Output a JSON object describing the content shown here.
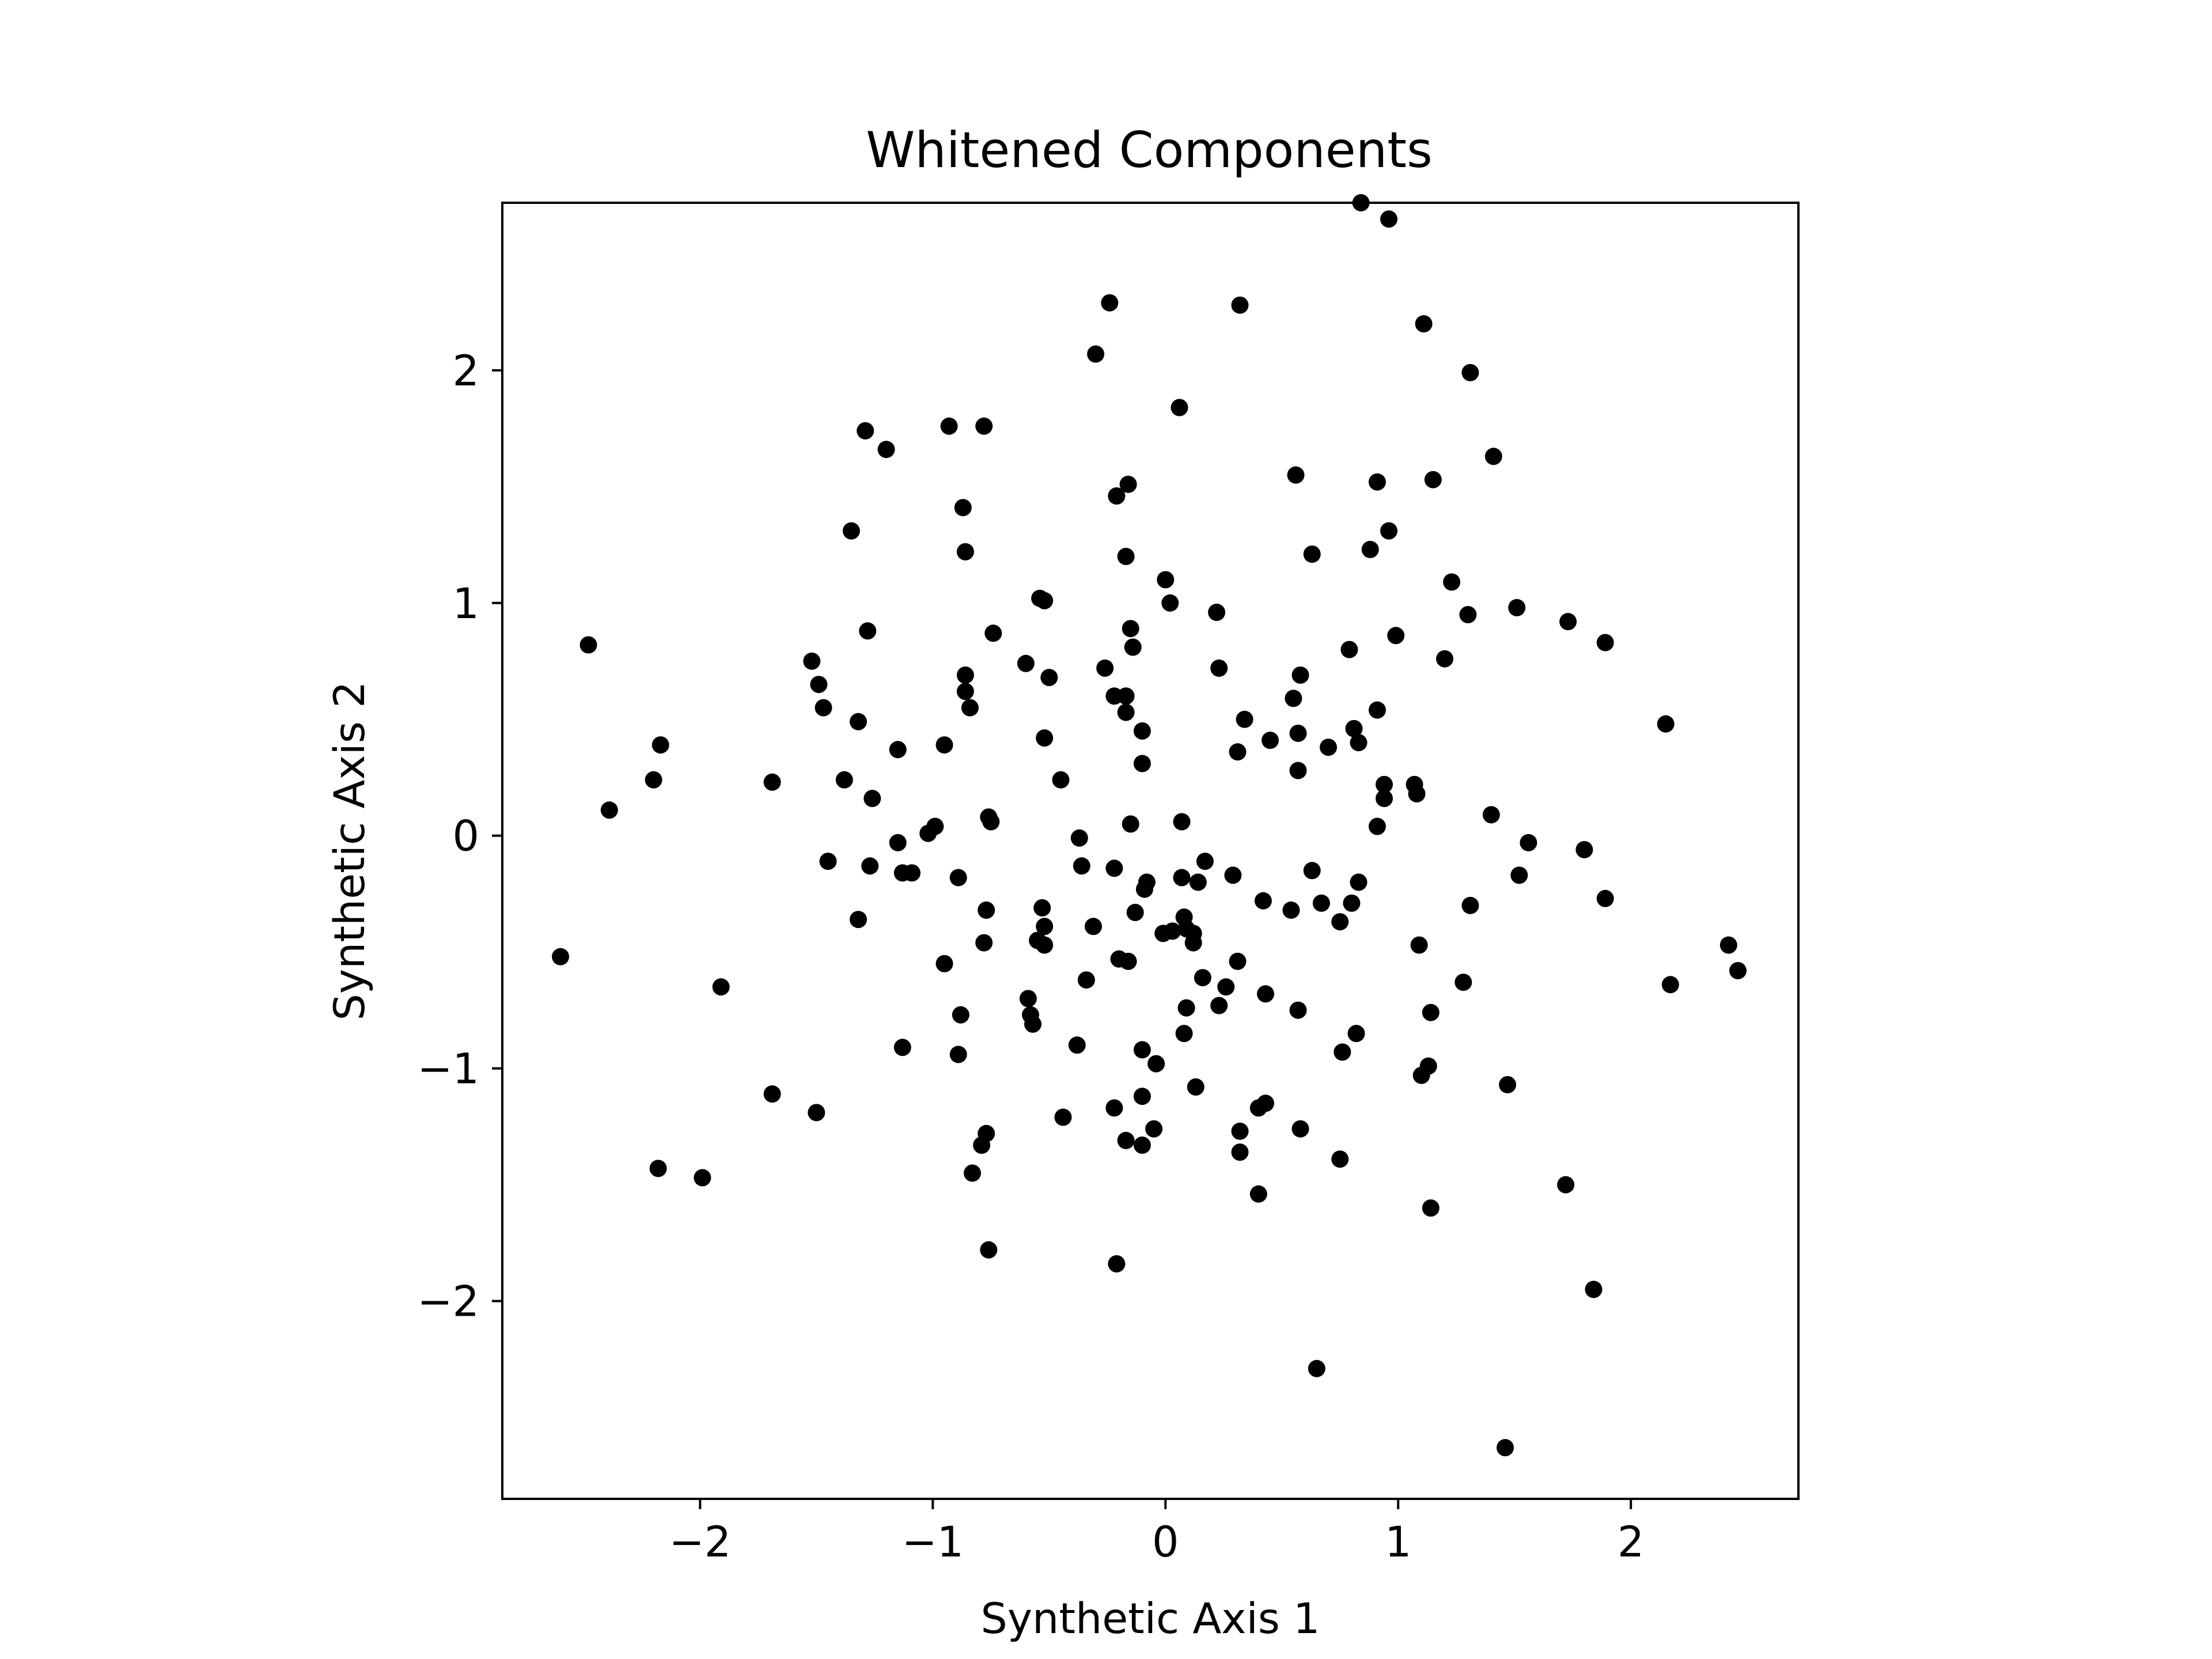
{
  "chart_data": {
    "type": "scatter",
    "title": "Whitened Components",
    "xlabel": "Synthetic Axis 1",
    "ylabel": "Synthetic Axis 2",
    "xlim": [
      -2.85,
      2.72
    ],
    "ylim": [
      -2.85,
      2.72
    ],
    "xticks": [
      {
        "value": -2,
        "label": "−2"
      },
      {
        "value": -1,
        "label": "−1"
      },
      {
        "value": 0,
        "label": "0"
      },
      {
        "value": 1,
        "label": "1"
      },
      {
        "value": 2,
        "label": "2"
      }
    ],
    "yticks": [
      {
        "value": -2,
        "label": "−2"
      },
      {
        "value": -1,
        "label": "−1"
      },
      {
        "value": 0,
        "label": "0"
      },
      {
        "value": 1,
        "label": "1"
      },
      {
        "value": 2,
        "label": "2"
      }
    ],
    "grid": false,
    "marker_color": "#000000",
    "points": [
      [
        0.84,
        2.72
      ],
      [
        0.96,
        2.65
      ],
      [
        -0.24,
        2.29
      ],
      [
        0.32,
        2.28
      ],
      [
        1.11,
        2.2
      ],
      [
        -0.3,
        2.07
      ],
      [
        1.31,
        1.99
      ],
      [
        0.06,
        1.84
      ],
      [
        -0.93,
        1.76
      ],
      [
        -0.78,
        1.76
      ],
      [
        -1.29,
        1.74
      ],
      [
        -1.2,
        1.66
      ],
      [
        1.41,
        1.63
      ],
      [
        0.56,
        1.55
      ],
      [
        1.15,
        1.53
      ],
      [
        0.91,
        1.52
      ],
      [
        -0.16,
        1.51
      ],
      [
        -0.21,
        1.46
      ],
      [
        -0.87,
        1.41
      ],
      [
        -1.35,
        1.31
      ],
      [
        0.96,
        1.31
      ],
      [
        -0.86,
        1.22
      ],
      [
        0.88,
        1.23
      ],
      [
        0.63,
        1.21
      ],
      [
        -0.17,
        1.2
      ],
      [
        0.0,
        1.1
      ],
      [
        1.23,
        1.09
      ],
      [
        -0.54,
        1.02
      ],
      [
        -0.52,
        1.01
      ],
      [
        0.02,
        1.0
      ],
      [
        1.51,
        0.98
      ],
      [
        0.22,
        0.96
      ],
      [
        1.3,
        0.95
      ],
      [
        1.73,
        0.92
      ],
      [
        -0.15,
        0.89
      ],
      [
        -1.28,
        0.88
      ],
      [
        -0.74,
        0.87
      ],
      [
        0.99,
        0.86
      ],
      [
        1.89,
        0.83
      ],
      [
        -2.48,
        0.82
      ],
      [
        -0.14,
        0.81
      ],
      [
        0.79,
        0.8
      ],
      [
        1.2,
        0.76
      ],
      [
        -1.52,
        0.75
      ],
      [
        -0.6,
        0.74
      ],
      [
        -0.26,
        0.72
      ],
      [
        0.23,
        0.72
      ],
      [
        -0.86,
        0.69
      ],
      [
        0.58,
        0.69
      ],
      [
        -0.5,
        0.68
      ],
      [
        -1.49,
        0.65
      ],
      [
        -0.86,
        0.62
      ],
      [
        -0.22,
        0.6
      ],
      [
        -0.17,
        0.6
      ],
      [
        0.55,
        0.59
      ],
      [
        -0.84,
        0.55
      ],
      [
        -1.47,
        0.55
      ],
      [
        0.91,
        0.54
      ],
      [
        -0.17,
        0.53
      ],
      [
        0.34,
        0.5
      ],
      [
        -1.32,
        0.49
      ],
      [
        2.15,
        0.48
      ],
      [
        0.81,
        0.46
      ],
      [
        -0.1,
        0.45
      ],
      [
        0.57,
        0.44
      ],
      [
        -0.52,
        0.42
      ],
      [
        0.45,
        0.41
      ],
      [
        0.83,
        0.4
      ],
      [
        -2.17,
        0.39
      ],
      [
        -0.95,
        0.39
      ],
      [
        0.7,
        0.38
      ],
      [
        -1.15,
        0.37
      ],
      [
        0.31,
        0.36
      ],
      [
        -0.1,
        0.31
      ],
      [
        0.57,
        0.28
      ],
      [
        -0.45,
        0.24
      ],
      [
        -1.69,
        0.23
      ],
      [
        -2.2,
        0.24
      ],
      [
        -1.38,
        0.24
      ],
      [
        0.94,
        0.22
      ],
      [
        1.07,
        0.22
      ],
      [
        1.08,
        0.18
      ],
      [
        0.94,
        0.16
      ],
      [
        -1.26,
        0.16
      ],
      [
        -2.39,
        0.11
      ],
      [
        1.4,
        0.09
      ],
      [
        -0.76,
        0.08
      ],
      [
        -0.75,
        0.06
      ],
      [
        0.07,
        0.06
      ],
      [
        -0.15,
        0.05
      ],
      [
        0.91,
        0.04
      ],
      [
        -0.99,
        0.04
      ],
      [
        -1.02,
        0.01
      ],
      [
        -0.37,
        -0.01
      ],
      [
        -1.15,
        -0.03
      ],
      [
        1.56,
        -0.03
      ],
      [
        1.8,
        -0.06
      ],
      [
        -1.45,
        -0.11
      ],
      [
        0.17,
        -0.11
      ],
      [
        -1.27,
        -0.13
      ],
      [
        -0.36,
        -0.13
      ],
      [
        -0.22,
        -0.14
      ],
      [
        0.63,
        -0.15
      ],
      [
        -1.13,
        -0.16
      ],
      [
        -1.09,
        -0.16
      ],
      [
        1.52,
        -0.17
      ],
      [
        0.29,
        -0.17
      ],
      [
        -0.89,
        -0.18
      ],
      [
        0.07,
        -0.18
      ],
      [
        0.14,
        -0.2
      ],
      [
        -0.08,
        -0.2
      ],
      [
        0.83,
        -0.2
      ],
      [
        -0.09,
        -0.23
      ],
      [
        1.89,
        -0.27
      ],
      [
        0.42,
        -0.28
      ],
      [
        0.8,
        -0.29
      ],
      [
        0.67,
        -0.29
      ],
      [
        1.31,
        -0.3
      ],
      [
        -0.53,
        -0.31
      ],
      [
        0.54,
        -0.32
      ],
      [
        -0.77,
        -0.32
      ],
      [
        -0.13,
        -0.33
      ],
      [
        0.08,
        -0.35
      ],
      [
        -1.32,
        -0.36
      ],
      [
        0.75,
        -0.37
      ],
      [
        -0.31,
        -0.39
      ],
      [
        -0.52,
        -0.39
      ],
      [
        0.09,
        -0.4
      ],
      [
        0.03,
        -0.41
      ],
      [
        0.12,
        -0.42
      ],
      [
        -0.01,
        -0.42
      ],
      [
        -0.55,
        -0.45
      ],
      [
        -0.78,
        -0.46
      ],
      [
        0.12,
        -0.46
      ],
      [
        -0.52,
        -0.47
      ],
      [
        2.42,
        -0.47
      ],
      [
        1.09,
        -0.47
      ],
      [
        -2.6,
        -0.52
      ],
      [
        -0.2,
        -0.53
      ],
      [
        -0.16,
        -0.54
      ],
      [
        0.31,
        -0.54
      ],
      [
        -0.95,
        -0.55
      ],
      [
        2.46,
        -0.58
      ],
      [
        -0.34,
        -0.62
      ],
      [
        0.16,
        -0.61
      ],
      [
        1.28,
        -0.63
      ],
      [
        2.17,
        -0.64
      ],
      [
        -1.91,
        -0.65
      ],
      [
        0.26,
        -0.65
      ],
      [
        0.43,
        -0.68
      ],
      [
        -0.59,
        -0.7
      ],
      [
        0.23,
        -0.73
      ],
      [
        0.09,
        -0.74
      ],
      [
        0.57,
        -0.75
      ],
      [
        1.14,
        -0.76
      ],
      [
        -0.58,
        -0.77
      ],
      [
        -0.88,
        -0.77
      ],
      [
        -0.57,
        -0.81
      ],
      [
        0.08,
        -0.85
      ],
      [
        0.82,
        -0.85
      ],
      [
        -0.38,
        -0.9
      ],
      [
        -1.13,
        -0.91
      ],
      [
        -0.1,
        -0.92
      ],
      [
        0.76,
        -0.93
      ],
      [
        -0.89,
        -0.94
      ],
      [
        -0.04,
        -0.98
      ],
      [
        1.13,
        -0.99
      ],
      [
        1.1,
        -1.03
      ],
      [
        1.47,
        -1.07
      ],
      [
        0.13,
        -1.08
      ],
      [
        -1.69,
        -1.11
      ],
      [
        -0.1,
        -1.12
      ],
      [
        0.43,
        -1.15
      ],
      [
        -0.22,
        -1.17
      ],
      [
        0.4,
        -1.17
      ],
      [
        -1.5,
        -1.19
      ],
      [
        -0.44,
        -1.21
      ],
      [
        0.58,
        -1.26
      ],
      [
        -0.05,
        -1.26
      ],
      [
        0.32,
        -1.27
      ],
      [
        -0.77,
        -1.28
      ],
      [
        -0.17,
        -1.31
      ],
      [
        -0.1,
        -1.33
      ],
      [
        -0.79,
        -1.33
      ],
      [
        0.32,
        -1.36
      ],
      [
        0.75,
        -1.39
      ],
      [
        -2.18,
        -1.43
      ],
      [
        -0.83,
        -1.45
      ],
      [
        -1.99,
        -1.47
      ],
      [
        1.72,
        -1.5
      ],
      [
        0.4,
        -1.54
      ],
      [
        1.14,
        -1.6
      ],
      [
        -0.76,
        -1.78
      ],
      [
        -0.21,
        -1.84
      ],
      [
        1.84,
        -1.95
      ],
      [
        0.65,
        -2.29
      ],
      [
        1.46,
        -2.63
      ]
    ]
  }
}
